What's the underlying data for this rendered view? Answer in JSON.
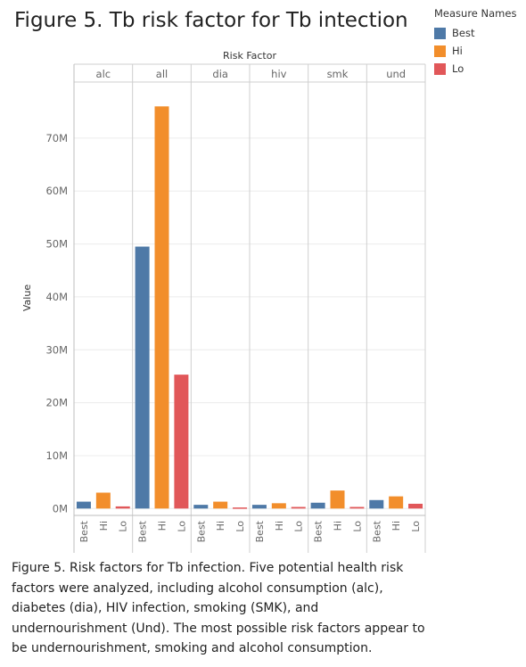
{
  "title": "Figure 5. Tb risk factor for Tb intection",
  "legend": {
    "title": "Measure Names",
    "items": [
      {
        "label": "Best",
        "color": "#4e79a7"
      },
      {
        "label": "Hi",
        "color": "#f28e2b"
      },
      {
        "label": "Lo",
        "color": "#e15759"
      }
    ]
  },
  "chart_data": {
    "type": "bar",
    "column_header": "Risk Factor",
    "ylabel": "Value",
    "categories": [
      "alc",
      "all",
      "dia",
      "hiv",
      "smk",
      "und"
    ],
    "sub_categories": [
      "Best",
      "Hi",
      "Lo"
    ],
    "series": [
      {
        "name": "Best",
        "values": [
          1.3,
          49.5,
          0.7,
          0.7,
          1.1,
          1.6
        ]
      },
      {
        "name": "Hi",
        "values": [
          3.0,
          76.0,
          1.3,
          1.0,
          3.4,
          2.3
        ]
      },
      {
        "name": "Lo",
        "values": [
          0.4,
          25.3,
          0.2,
          0.3,
          0.3,
          0.9
        ]
      }
    ],
    "yticks": [
      0,
      10,
      20,
      30,
      40,
      50,
      60,
      70
    ],
    "ytick_labels": [
      "0M",
      "10M",
      "20M",
      "30M",
      "40M",
      "50M",
      "60M",
      "70M"
    ],
    "ylim": [
      -1.3,
      80.6
    ],
    "colors": {
      "Best": "#4e79a7",
      "Hi": "#f28e2b",
      "Lo": "#e15759"
    }
  },
  "caption": "Figure 5. Risk factors for Tb infection. Five potential health risk factors were analyzed, including alcohol consumption (alc), diabetes (dia), HIV infection, smoking (SMK), and undernourishment (Und). The most possible risk factors appear to be undernourishment, smoking and alcohol consumption."
}
